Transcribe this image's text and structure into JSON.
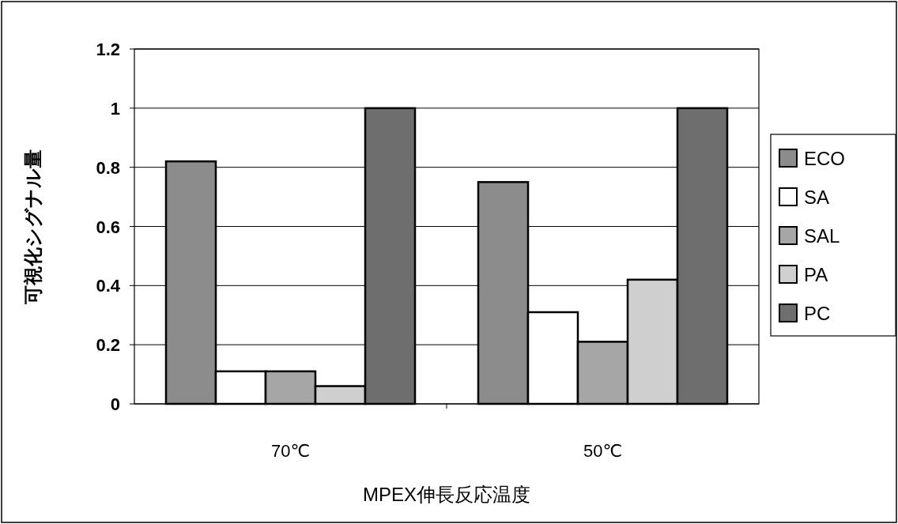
{
  "chart_data": {
    "type": "bar",
    "xlabel": "MPEX伸長反応温度",
    "ylabel": "可視化シグナル量",
    "categories": [
      "70℃",
      "50℃"
    ],
    "series": [
      {
        "name": "ECO",
        "color": "#8c8c8c",
        "values": [
          0.82,
          0.75
        ]
      },
      {
        "name": "SA",
        "color": "#ffffff",
        "values": [
          0.11,
          0.31
        ]
      },
      {
        "name": "SAL",
        "color": "#a6a6a6",
        "values": [
          0.11,
          0.21
        ]
      },
      {
        "name": "PA",
        "color": "#cfcfcf",
        "values": [
          0.06,
          0.42
        ]
      },
      {
        "name": "PC",
        "color": "#6e6e6e",
        "values": [
          1.0,
          1.0
        ]
      }
    ],
    "ylim": [
      0,
      1.2
    ],
    "yticks": [
      0,
      0.2,
      0.4,
      0.6,
      0.8,
      1,
      1.2
    ],
    "grid": "y",
    "legend": "right"
  }
}
